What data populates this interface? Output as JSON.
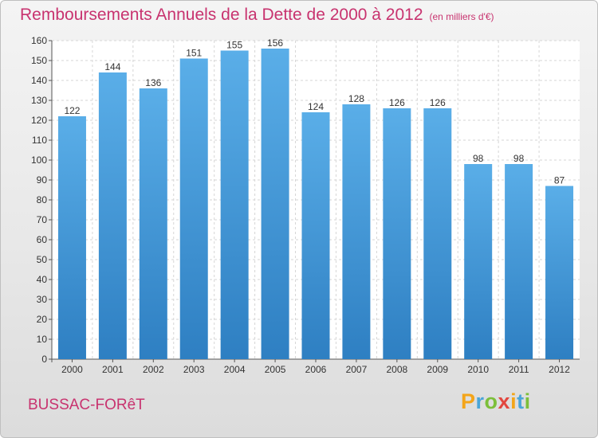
{
  "chart_data": {
    "type": "bar",
    "title": "Remboursements Annuels de la Dette de 2000 à 2012",
    "unit_note": "(en milliers d'€)",
    "categories": [
      "2000",
      "2001",
      "2002",
      "2003",
      "2004",
      "2005",
      "2006",
      "2007",
      "2008",
      "2009",
      "2010",
      "2011",
      "2012"
    ],
    "values": [
      122,
      144,
      136,
      151,
      155,
      156,
      124,
      128,
      126,
      126,
      98,
      98,
      87
    ],
    "ylim": [
      0,
      160
    ],
    "yticks": [
      0,
      10,
      20,
      30,
      40,
      50,
      60,
      70,
      80,
      90,
      100,
      110,
      120,
      130,
      140,
      150,
      160
    ],
    "grid": true,
    "bar_color_top": "#5aaee8",
    "bar_color_bottom": "#2e7fc2",
    "xlabel": "",
    "ylabel": ""
  },
  "place_name": "BUSSAC-FORêT",
  "brand": {
    "letters": [
      "P",
      "r",
      "o",
      "x",
      "i",
      "t",
      "i"
    ],
    "colors": [
      "#f3a51a",
      "#4aa5d8",
      "#7cbf3a",
      "#e2473f",
      "#f3a51a",
      "#4aa5d8",
      "#7cbf3a"
    ]
  }
}
